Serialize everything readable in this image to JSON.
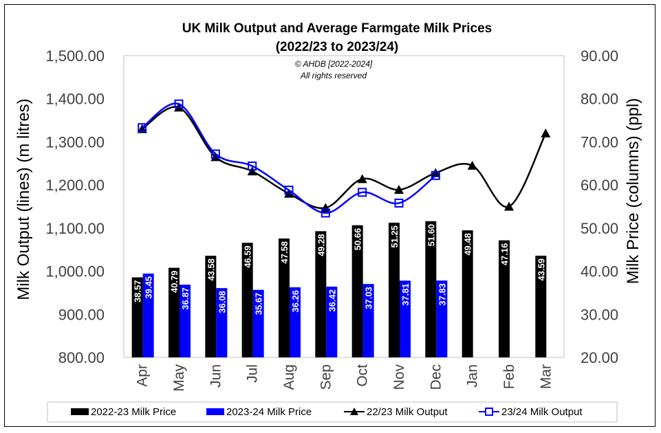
{
  "chart_data": {
    "type": "bar+line",
    "title_line1": "UK Milk Output and Average Farmgate Milk Prices",
    "title_line2": "(2022/23 to 2023/24)",
    "copyright": "© AHDB [2022-2024]",
    "rights": "All rights reserved",
    "categories": [
      "Apr",
      "May",
      "Jun",
      "Jul",
      "Aug",
      "Sep",
      "Oct",
      "Nov",
      "Dec",
      "Jan",
      "Feb",
      "Mar"
    ],
    "y_left": {
      "label": "Milk Output (lines) (m litres)",
      "min": 800,
      "max": 1500,
      "step": 100,
      "ticks": [
        "800.00",
        "900.00",
        "1,000.00",
        "1,100.00",
        "1,200.00",
        "1,300.00",
        "1,400.00",
        "1,500.00"
      ]
    },
    "y_right": {
      "label": "Milk Price (columns) (ppl)",
      "min": 20,
      "max": 90,
      "step": 10,
      "ticks": [
        "20.00",
        "30.00",
        "40.00",
        "50.00",
        "60.00",
        "70.00",
        "80.00",
        "90.00"
      ]
    },
    "bar_series": [
      {
        "name": "2022-23 Milk Price",
        "color": "#000000",
        "values": [
          38.57,
          40.79,
          43.58,
          46.59,
          47.58,
          49.28,
          50.66,
          51.25,
          51.6,
          49.48,
          47.16,
          43.59
        ],
        "labels": [
          "38.57",
          "40.79",
          "43.58",
          "46.59",
          "47.58",
          "49.28",
          "50.66",
          "51.25",
          "51.60",
          "49.48",
          "47.16",
          "43.59"
        ]
      },
      {
        "name": "2023-24 Milk Price",
        "color": "#0000ff",
        "values": [
          39.45,
          36.87,
          36.08,
          35.67,
          36.26,
          36.42,
          37.03,
          37.81,
          37.83,
          null,
          null,
          null
        ],
        "labels": [
          "39.45",
          "36.87",
          "36.08",
          "35.67",
          "36.26",
          "36.42",
          "37.03",
          "37.81",
          "37.83",
          "",
          "",
          ""
        ]
      }
    ],
    "line_series": [
      {
        "name": "22/23 Milk Output",
        "color": "#000000",
        "marker": "triangle",
        "values": [
          1330,
          1380,
          1265,
          1232,
          1180,
          1147,
          1214,
          1189,
          1228,
          1245,
          1150,
          1320
        ]
      },
      {
        "name": "23/24 Milk Output",
        "color": "#0000ff",
        "marker": "square",
        "values": [
          1333,
          1388,
          1272,
          1244,
          1188,
          1135,
          1183,
          1158,
          1222,
          null,
          null,
          null
        ]
      }
    ],
    "legend_position": "bottom",
    "grid": false
  }
}
